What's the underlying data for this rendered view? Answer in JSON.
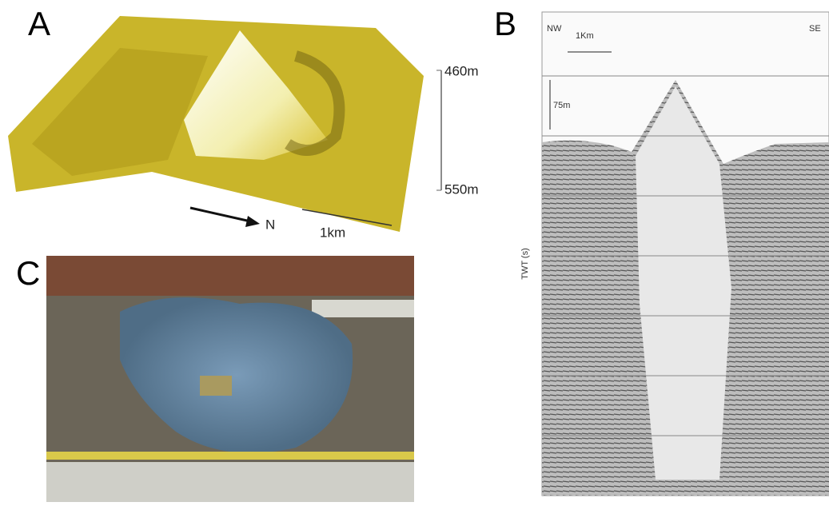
{
  "panels": [
    {
      "label": "A",
      "scale": {
        "top": "460m",
        "bottom": "550m",
        "north": "N",
        "distance": "1km"
      }
    },
    {
      "label": "B",
      "left": "NW",
      "right": "SE",
      "distance": "1Km",
      "height": "75m",
      "axis": "TWT (s)"
    },
    {
      "label": "C"
    }
  ]
}
